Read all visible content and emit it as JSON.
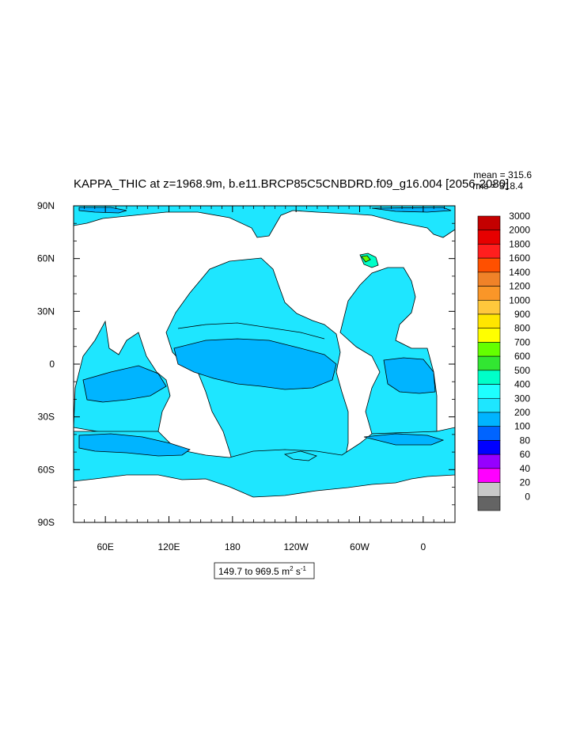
{
  "title": "KAPPA_THIC at z=1968.9m, b.e11.BRCP85C5CNBDRD.f09_g16.004 [2056-2080]",
  "stats": {
    "mean": "mean = 315.6",
    "rms": "rms = 318.4"
  },
  "range_label": {
    "text": "149.7 to 969.5 m",
    "sup1": "2",
    "mid": " s",
    "sup2": "-1"
  },
  "colors": {
    "land": "#ffffff",
    "ocean_base": "#1ee6ff",
    "ocean_mid": "#00b4ff",
    "ocean_low": "#14c8ff"
  },
  "chart_data": {
    "type": "heatmap",
    "projection": "cylindrical-equidistant",
    "center_lon": 180,
    "lon_range": [
      30,
      390
    ],
    "lat_range": [
      -90,
      90
    ],
    "x_ticks": [
      "60E",
      "120E",
      "180",
      "120W",
      "60W",
      "0"
    ],
    "x_tick_lons": [
      60,
      120,
      180,
      240,
      300,
      360
    ],
    "y_ticks": [
      "90N",
      "60N",
      "30N",
      "0",
      "30S",
      "60S",
      "90S"
    ],
    "y_tick_lats": [
      90,
      60,
      30,
      0,
      -30,
      -60,
      -90
    ],
    "colorbar": {
      "labels": [
        "3000",
        "2000",
        "1800",
        "1600",
        "1400",
        "1200",
        "1000",
        "900",
        "800",
        "700",
        "600",
        "500",
        "400",
        "300",
        "200",
        "100",
        "80",
        "60",
        "40",
        "20",
        "0"
      ],
      "colors": [
        "#c40000",
        "#e60000",
        "#ff1e1e",
        "#ff5000",
        "#f08228",
        "#fa9628",
        "#ffc83c",
        "#ffe600",
        "#ffff00",
        "#64ff00",
        "#32e632",
        "#00ffc8",
        "#1effff",
        "#1ee6ff",
        "#00b4ff",
        "#0064ff",
        "#0000ff",
        "#9600ff",
        "#ff00ff",
        "#c8c8c8",
        "#646464"
      ]
    },
    "value_min": 149.7,
    "value_max": 969.5,
    "units": "m2 s-1"
  }
}
